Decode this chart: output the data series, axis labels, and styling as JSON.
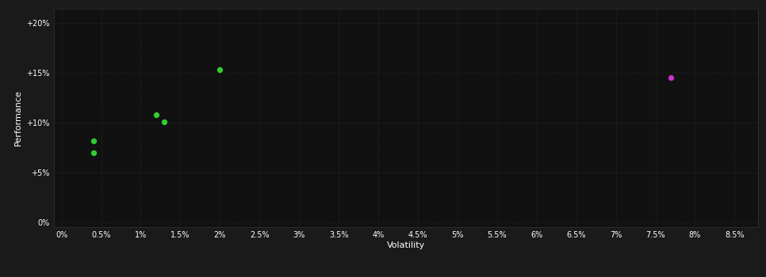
{
  "background_color": "#1a1a1a",
  "plot_bg_color": "#111111",
  "grid_color": "#333333",
  "text_color": "#ffffff",
  "xlabel": "Volatility",
  "ylabel": "Performance",
  "x_ticks": [
    0.0,
    0.005,
    0.01,
    0.015,
    0.02,
    0.025,
    0.03,
    0.035,
    0.04,
    0.045,
    0.05,
    0.055,
    0.06,
    0.065,
    0.07,
    0.075,
    0.08,
    0.085
  ],
  "y_ticks": [
    0.0,
    0.05,
    0.1,
    0.15,
    0.2
  ],
  "xlim": [
    -0.001,
    0.088
  ],
  "ylim": [
    -0.005,
    0.215
  ],
  "green_points": [
    [
      0.004,
      0.082
    ],
    [
      0.004,
      0.07
    ],
    [
      0.012,
      0.108
    ],
    [
      0.013,
      0.101
    ],
    [
      0.02,
      0.153
    ]
  ],
  "magenta_points": [
    [
      0.077,
      0.145
    ]
  ],
  "green_color": "#33cc33",
  "magenta_color": "#cc33cc",
  "dot_size": 18
}
